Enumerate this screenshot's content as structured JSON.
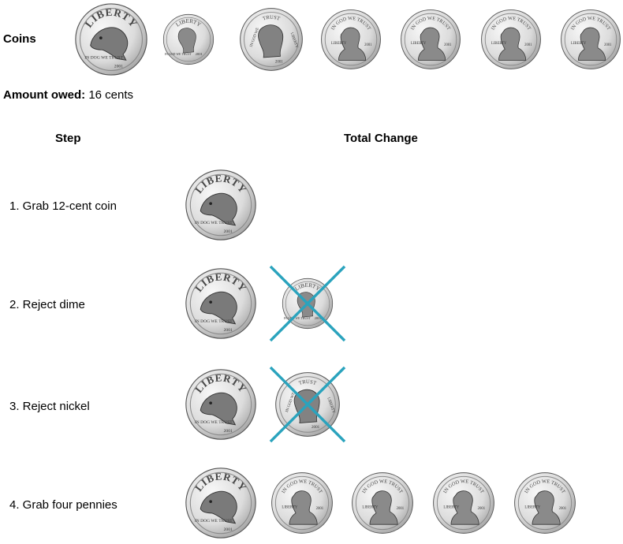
{
  "coins_label": "Coins",
  "amount": {
    "label": "Amount owed:",
    "value": "16 cents"
  },
  "headers": {
    "step": "Step",
    "total": "Total Change"
  },
  "coin_faces": {
    "dog": {
      "top": "LIBERTY",
      "motto": "IN DOG WE TRUST",
      "year": "2001"
    },
    "dime": {
      "top": "LIBERTY",
      "motto": "IN GOD WE TRUST",
      "year": "2001"
    },
    "nickel": {
      "top": "TRUST",
      "left": "IN GOD WE",
      "right": "LIBERTY",
      "year": "2001"
    },
    "penny": {
      "top": "IN GOD WE TRUST",
      "left": "LIBERTY",
      "year": "2001"
    }
  },
  "coins_row": [
    "dog",
    "dime",
    "nickel",
    "penny",
    "penny",
    "penny",
    "penny"
  ],
  "steps": [
    {
      "label": "1. Grab 12-cent coin",
      "coins": [
        {
          "type": "dog",
          "rejected": false
        }
      ]
    },
    {
      "label": "2. Reject dime",
      "coins": [
        {
          "type": "dog",
          "rejected": false
        },
        {
          "type": "dime",
          "rejected": true
        }
      ]
    },
    {
      "label": "3. Reject nickel",
      "coins": [
        {
          "type": "dog",
          "rejected": false
        },
        {
          "type": "nickel",
          "rejected": true
        }
      ]
    },
    {
      "label": "4. Grab four pennies",
      "coins": [
        {
          "type": "dog",
          "rejected": false
        },
        {
          "type": "penny",
          "rejected": false
        },
        {
          "type": "penny",
          "rejected": false
        },
        {
          "type": "penny",
          "rejected": false
        },
        {
          "type": "penny",
          "rejected": false
        }
      ]
    }
  ],
  "colors": {
    "reject_mark": "#2aa3bd",
    "coin_rim": "#8a8a8a",
    "coin_face": "#dcdcdc"
  }
}
